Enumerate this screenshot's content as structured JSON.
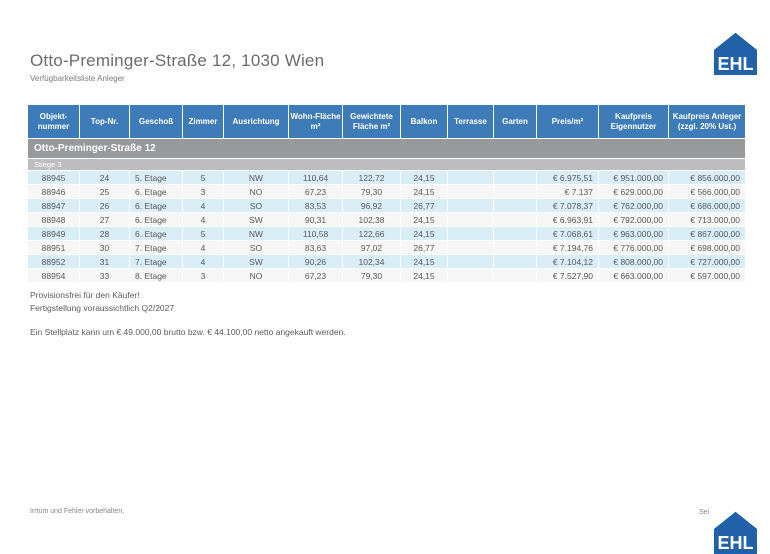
{
  "header": {
    "title": "Otto-Preminger-Straße 12, 1030 Wien",
    "subtitle": "Verfügbarkeitsliste Anleger"
  },
  "logo": {
    "text": "EHL",
    "color": "#2161a8"
  },
  "table": {
    "columns": [
      "Objekt-nummer",
      "Top-Nr.",
      "Geschoß",
      "Zimmer",
      "Ausrichtung",
      "Wohn-Fläche m²",
      "Gewichtete Fläche m²",
      "Balkon",
      "Terrasse",
      "Garten",
      "Preis/m²",
      "Kaufpreis Eigennutzer",
      "Kaufpreis Anleger (zzgl. 20% Ust.)"
    ],
    "group_label": "Otto-Preminger-Straße 12",
    "subgroup_label": "Stiege 3",
    "rows": [
      [
        "88945",
        "24",
        "5. Etage",
        "5",
        "NW",
        "110,64",
        "122,72",
        "24,15",
        "",
        "",
        "€ 6.975,51",
        "€ 951.000,00",
        "€ 856.000,00"
      ],
      [
        "88946",
        "25",
        "6. Etage",
        "3",
        "NO",
        "67,23",
        "79,30",
        "24,15",
        "",
        "",
        "€ 7.137",
        "€ 629.000,00",
        "€ 566.000,00"
      ],
      [
        "88947",
        "26",
        "6. Etage",
        "4",
        "SO",
        "83,53",
        "96,92",
        "26,77",
        "",
        "",
        "€ 7.078,37",
        "€ 762.000,00",
        "€ 686.000,00"
      ],
      [
        "88948",
        "27",
        "6. Etage",
        "4",
        "SW",
        "90,31",
        "102,38",
        "24,15",
        "",
        "",
        "€ 6.963,91",
        "€ 792.000,00",
        "€ 713.000,00"
      ],
      [
        "88949",
        "28",
        "6. Etage",
        "5",
        "NW",
        "110,58",
        "122,66",
        "24,15",
        "",
        "",
        "€ 7.068,61",
        "€ 963.000,00",
        "€ 867.000,00"
      ],
      [
        "88951",
        "30",
        "7. Etage",
        "4",
        "SO",
        "83,63",
        "97,02",
        "26,77",
        "",
        "",
        "€ 7.194,76",
        "€ 776.000,00",
        "€ 698.000,00"
      ],
      [
        "88952",
        "31",
        "7. Etage",
        "4",
        "SW",
        "90,26",
        "102,34",
        "24,15",
        "",
        "",
        "€ 7.104,12",
        "€ 808.000,00",
        "€ 727.000,00"
      ],
      [
        "88954",
        "33",
        "8. Etage",
        "3",
        "NO",
        "67,23",
        "79,30",
        "24,15",
        "",
        "",
        "€ 7.527,90",
        "€ 663.000,00",
        "€ 597.000,00"
      ]
    ]
  },
  "notes": {
    "line1": "Provisionsfrei für den Käufer!",
    "line2": "Fertigstellung voraussichtlich Q2/2027",
    "line3": "Ein Stellplatz kann um € 49.000,00 brutto bzw. € 44.100,00 netto angekauft werden."
  },
  "footer": {
    "left": "Irrtum und Fehler vorbehalten.",
    "right": "Sei"
  }
}
